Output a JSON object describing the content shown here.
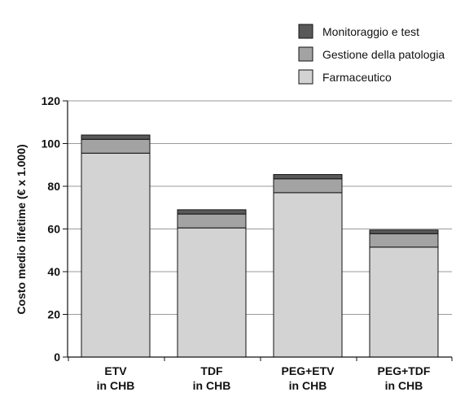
{
  "chart_data": {
    "type": "bar",
    "stacked": true,
    "categories": [
      [
        "ETV",
        "in CHB"
      ],
      [
        "TDF",
        "in CHB"
      ],
      [
        "PEG+ETV",
        "in CHB"
      ],
      [
        "PEG+TDF",
        "in CHB"
      ]
    ],
    "series": [
      {
        "name": "Farmaceutico",
        "color": "#d3d3d3",
        "values": [
          95.5,
          60.5,
          77,
          51.5
        ]
      },
      {
        "name": "Gestione della patologia",
        "color": "#a3a3a3",
        "values": [
          6.5,
          6.5,
          6.5,
          6.3
        ]
      },
      {
        "name": "Monitoraggio e test",
        "color": "#595959",
        "values": [
          2,
          2,
          2,
          1.7
        ]
      }
    ],
    "legend_order": [
      "Monitoraggio e test",
      "Gestione della patologia",
      "Farmaceutico"
    ],
    "legend_position": "top-right",
    "ylabel": "Costo medio lifetime (€ x 1.000)",
    "xlabel": "",
    "title": "",
    "ylim": [
      0,
      120
    ],
    "yticks": [
      0,
      20,
      40,
      60,
      80,
      100,
      120
    ],
    "grid": "horizontal"
  }
}
